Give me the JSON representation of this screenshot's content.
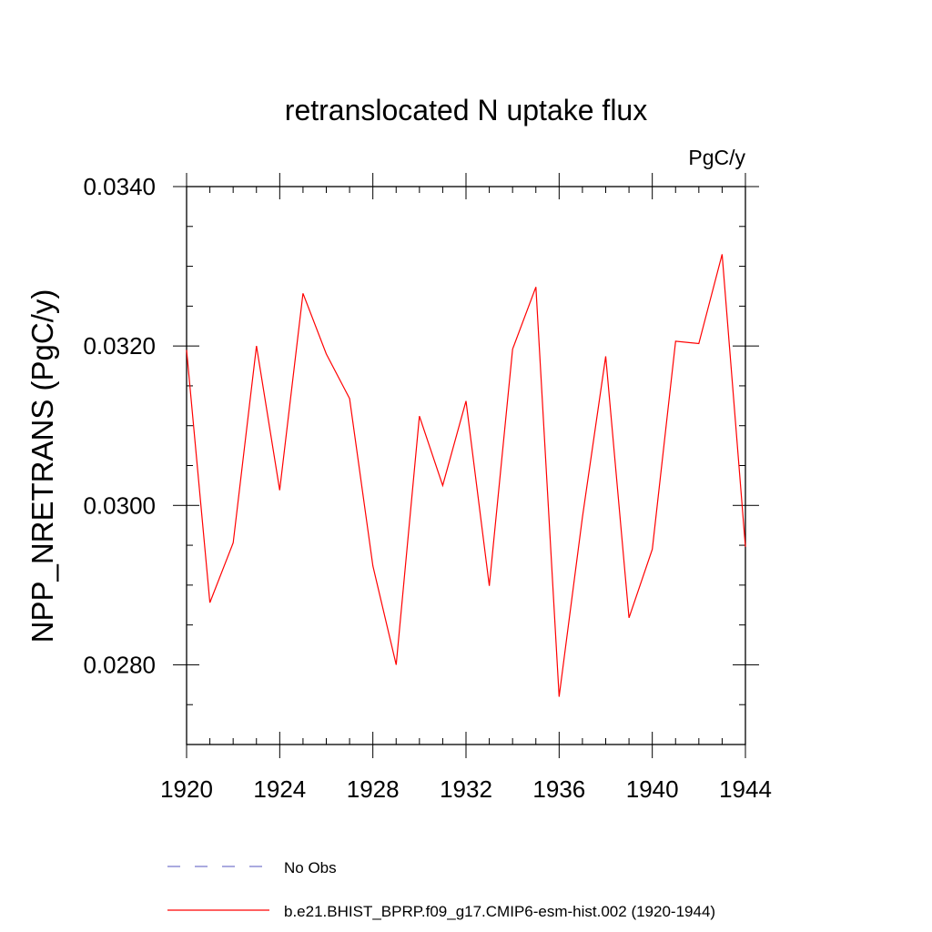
{
  "chart_data": {
    "type": "line",
    "title": "retranslocated N uptake flux",
    "units": "PgC/y",
    "ylabel": "NPP_NRETRANS  (PgC/y)",
    "xlabel": "",
    "xlim": [
      1920,
      1944
    ],
    "ylim": [
      0.027,
      0.034
    ],
    "x_ticks": [
      1920,
      1924,
      1928,
      1932,
      1936,
      1940,
      1944
    ],
    "x_tick_labels": [
      "1920",
      "1924",
      "1928",
      "1932",
      "1936",
      "1940",
      "1944"
    ],
    "y_ticks": [
      0.028,
      0.03,
      0.032,
      0.034
    ],
    "y_tick_labels": [
      "0.0280",
      "0.0300",
      "0.0320",
      "0.0340"
    ],
    "grid": false,
    "legend_position": "bottom",
    "series": [
      {
        "name": "b.e21.BHIST_BPRP.f09_g17.CMIP6-esm-hist.002 (1920-1944)",
        "color": "#ff0000",
        "dash": "solid",
        "x": [
          1920,
          1921,
          1922,
          1923,
          1924,
          1925,
          1926,
          1927,
          1928,
          1929,
          1930,
          1931,
          1932,
          1933,
          1934,
          1935,
          1936,
          1937,
          1938,
          1939,
          1940,
          1941,
          1942,
          1943,
          1944
        ],
        "y": [
          0.03195,
          0.02878,
          0.02953,
          0.032,
          0.03019,
          0.03266,
          0.0319,
          0.03134,
          0.02924,
          0.028,
          0.03112,
          0.03025,
          0.03131,
          0.02899,
          0.03196,
          0.03274,
          0.0276,
          0.02985,
          0.03187,
          0.02859,
          0.02945,
          0.03206,
          0.03203,
          0.03315,
          0.02948
        ]
      }
    ],
    "legend": [
      {
        "label": "No Obs",
        "color": "#7777cc",
        "dash": "dashed"
      },
      {
        "label": "b.e21.BHIST_BPRP.f09_g17.CMIP6-esm-hist.002 (1920-1944)",
        "color": "#ff0000",
        "dash": "solid"
      }
    ]
  }
}
